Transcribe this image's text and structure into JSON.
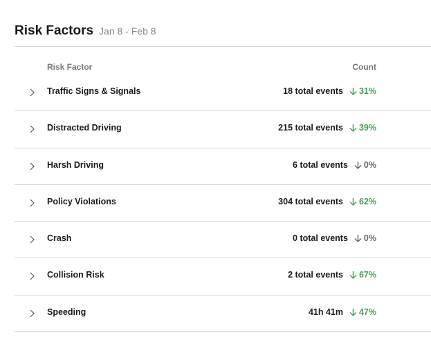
{
  "header": {
    "title": "Risk Factors",
    "date_range": "Jan 8 - Feb 8"
  },
  "table": {
    "columns": [
      "Risk Factor",
      "Count"
    ],
    "rows": [
      {
        "name": "Traffic Signs & Signals",
        "count": "18 total events",
        "change": "31%",
        "color": "#4a9a5c"
      },
      {
        "name": "Distracted Driving",
        "count": "215 total events",
        "change": "39%",
        "color": "#4a9a5c"
      },
      {
        "name": "Harsh Driving",
        "count": "6 total events",
        "change": "0%",
        "color": "#666666"
      },
      {
        "name": "Policy Violations",
        "count": "304 total events",
        "change": "62%",
        "color": "#4a9a5c"
      },
      {
        "name": "Crash",
        "count": "0 total events",
        "change": "0%",
        "color": "#666666"
      },
      {
        "name": "Collision Risk",
        "count": "2 total events",
        "change": "67%",
        "color": "#4a9a5c"
      },
      {
        "name": "Speeding",
        "count": "41h 41m",
        "change": "47%",
        "color": "#4a9a5c"
      }
    ]
  }
}
